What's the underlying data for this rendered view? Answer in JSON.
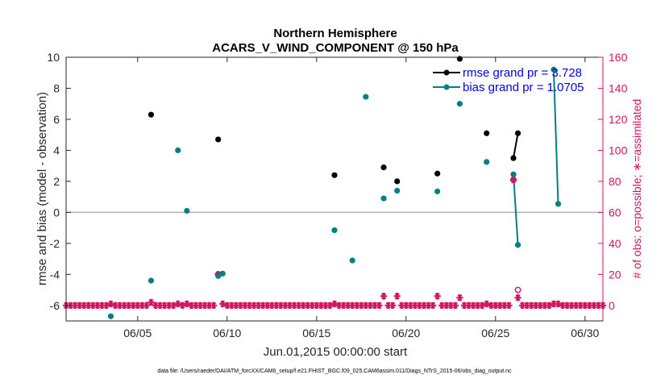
{
  "chart_data": {
    "type": "scatter",
    "title": "Northern Hemisphere",
    "subtitle": "ACARS_V_WIND_COMPONENT @ 150 hPa",
    "xlabel": "Jun.01,2015 00:00:00 start",
    "ylabel": "rmse and bias (model - observation)",
    "y2label": "# of obs: o=possible; ∗=assimilated",
    "footnote": "data file: /Users/raeder/DAI/ATM_forcXX/CAM6_setup/f.e21.FHIST_BGC.f09_025.CAM6assim.011/Diags_NTrS_2015-06/obs_diag_output.nc",
    "xlim": [
      1,
      31
    ],
    "ylim": [
      -7,
      10
    ],
    "y2lim": [
      -10,
      160
    ],
    "x_ticks": [
      5,
      10,
      15,
      20,
      25,
      30
    ],
    "x_tick_labels": [
      "06/05",
      "06/10",
      "06/15",
      "06/20",
      "06/25",
      "06/30"
    ],
    "y_ticks": [
      -6,
      -4,
      -2,
      0,
      2,
      4,
      6,
      8,
      10
    ],
    "y2_ticks": [
      0,
      20,
      40,
      60,
      80,
      100,
      120,
      140,
      160
    ],
    "zero_line": 0,
    "grid": false,
    "legend_position": "top-right",
    "colors": {
      "rmse": "#000000",
      "bias": "#008080",
      "obs": "#d6135f",
      "zero": "#b3b3b3",
      "legend_text": "#0000ee"
    },
    "series": [
      {
        "name": "rmse grand pr = 3.728",
        "axis": "left",
        "color": "#000000",
        "points": [
          [
            5.75,
            6.3
          ],
          [
            9.5,
            4.7
          ],
          [
            16,
            2.4
          ],
          [
            18.75,
            2.9
          ],
          [
            19.5,
            2.0
          ],
          [
            21.75,
            2.5
          ],
          [
            23,
            9.9
          ],
          [
            24.5,
            5.1
          ],
          [
            26,
            3.5
          ],
          [
            26.25,
            5.1
          ]
        ],
        "lines": [
          [
            [
              26,
              3.5
            ],
            [
              26.25,
              5.1
            ]
          ]
        ]
      },
      {
        "name": "bias grand pr = 1.0705",
        "axis": "left",
        "color": "#008080",
        "points": [
          [
            3.5,
            -6.7
          ],
          [
            5.75,
            -4.4
          ],
          [
            7.25,
            4.0
          ],
          [
            7.75,
            0.1
          ],
          [
            9.5,
            -4.1
          ],
          [
            9.75,
            -3.95
          ],
          [
            16,
            -1.15
          ],
          [
            17,
            -3.1
          ],
          [
            17.75,
            7.45
          ],
          [
            18.75,
            0.9
          ],
          [
            19.5,
            1.4
          ],
          [
            21.75,
            1.35
          ],
          [
            23,
            7.0
          ],
          [
            24.5,
            3.25
          ],
          [
            26,
            2.45
          ],
          [
            26.25,
            -2.1
          ],
          [
            28.25,
            9.2
          ],
          [
            28.5,
            0.55
          ]
        ],
        "lines": [
          [
            [
              26,
              2.45
            ],
            [
              26.25,
              -2.1
            ]
          ],
          [
            [
              28.25,
              9.2
            ],
            [
              28.5,
              0.55
            ]
          ]
        ]
      },
      {
        "name": "# of obs possible",
        "axis": "right",
        "color": "#d6135f",
        "points": [
          [
            9.5,
            20
          ],
          [
            26,
            81
          ],
          [
            26.25,
            10
          ]
        ]
      },
      {
        "name": "# of obs assimilated",
        "axis": "right",
        "color": "#d6135f",
        "points": [
          [
            1,
            0
          ],
          [
            1.25,
            0
          ],
          [
            1.5,
            0
          ],
          [
            1.75,
            0
          ],
          [
            2,
            0
          ],
          [
            2.25,
            0
          ],
          [
            2.5,
            0
          ],
          [
            2.75,
            0
          ],
          [
            3,
            0
          ],
          [
            3.25,
            0
          ],
          [
            3.5,
            1
          ],
          [
            3.75,
            0
          ],
          [
            4,
            0
          ],
          [
            4.25,
            0
          ],
          [
            4.5,
            0
          ],
          [
            4.75,
            0
          ],
          [
            5,
            0
          ],
          [
            5.25,
            0
          ],
          [
            5.5,
            0
          ],
          [
            5.75,
            2
          ],
          [
            6,
            0
          ],
          [
            6.25,
            0
          ],
          [
            6.5,
            0
          ],
          [
            6.75,
            0
          ],
          [
            7,
            0
          ],
          [
            7.25,
            1
          ],
          [
            7.5,
            0
          ],
          [
            7.75,
            1
          ],
          [
            8,
            0
          ],
          [
            8.25,
            0
          ],
          [
            8.5,
            0
          ],
          [
            8.75,
            0
          ],
          [
            9,
            0
          ],
          [
            9.25,
            0
          ],
          [
            9.5,
            20
          ],
          [
            9.75,
            1
          ],
          [
            10,
            0
          ],
          [
            10.25,
            0
          ],
          [
            10.5,
            0
          ],
          [
            10.75,
            0
          ],
          [
            11,
            0
          ],
          [
            11.25,
            0
          ],
          [
            11.5,
            0
          ],
          [
            11.75,
            0
          ],
          [
            12,
            0
          ],
          [
            12.25,
            0
          ],
          [
            12.5,
            0
          ],
          [
            12.75,
            0
          ],
          [
            13,
            0
          ],
          [
            13.25,
            0
          ],
          [
            13.5,
            0
          ],
          [
            13.75,
            0
          ],
          [
            14,
            0
          ],
          [
            14.25,
            0
          ],
          [
            14.5,
            0
          ],
          [
            14.75,
            0
          ],
          [
            15,
            0
          ],
          [
            15.25,
            0
          ],
          [
            15.5,
            0
          ],
          [
            15.75,
            0
          ],
          [
            16,
            1
          ],
          [
            16.25,
            0
          ],
          [
            16.5,
            0
          ],
          [
            16.75,
            0
          ],
          [
            17,
            0
          ],
          [
            17.25,
            0
          ],
          [
            17.5,
            0
          ],
          [
            17.75,
            0
          ],
          [
            18,
            0
          ],
          [
            18.25,
            0
          ],
          [
            18.5,
            0
          ],
          [
            18.75,
            6
          ],
          [
            19,
            0
          ],
          [
            19.25,
            0
          ],
          [
            19.5,
            6
          ],
          [
            19.75,
            0
          ],
          [
            20,
            0
          ],
          [
            20.25,
            0
          ],
          [
            20.5,
            0
          ],
          [
            20.75,
            0
          ],
          [
            21,
            0
          ],
          [
            21.25,
            0
          ],
          [
            21.5,
            0
          ],
          [
            21.75,
            6
          ],
          [
            22,
            0
          ],
          [
            22.25,
            0
          ],
          [
            22.5,
            0
          ],
          [
            22.75,
            0
          ],
          [
            23,
            5
          ],
          [
            23.25,
            0
          ],
          [
            23.5,
            0
          ],
          [
            23.75,
            0
          ],
          [
            24,
            0
          ],
          [
            24.25,
            0
          ],
          [
            24.5,
            1
          ],
          [
            24.75,
            0
          ],
          [
            25,
            0
          ],
          [
            25.25,
            0
          ],
          [
            25.5,
            0
          ],
          [
            25.75,
            0
          ],
          [
            26,
            81
          ],
          [
            26.25,
            5
          ],
          [
            26.5,
            0
          ],
          [
            26.75,
            0
          ],
          [
            27,
            0
          ],
          [
            27.25,
            0
          ],
          [
            27.5,
            0
          ],
          [
            27.75,
            0
          ],
          [
            28,
            0
          ],
          [
            28.25,
            1
          ],
          [
            28.5,
            1
          ],
          [
            28.75,
            0
          ],
          [
            29,
            0
          ],
          [
            29.25,
            0
          ],
          [
            29.5,
            0
          ],
          [
            29.75,
            0
          ],
          [
            30,
            0
          ],
          [
            30.25,
            0
          ],
          [
            30.5,
            0
          ],
          [
            30.75,
            0
          ],
          [
            31,
            0
          ]
        ]
      }
    ]
  }
}
